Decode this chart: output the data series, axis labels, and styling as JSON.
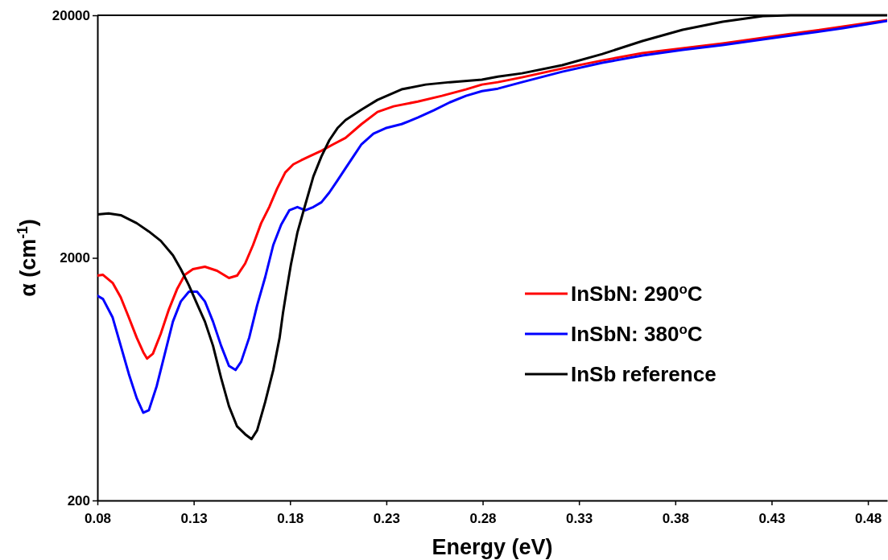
{
  "chart_data": {
    "type": "line",
    "xlabel": "Energy (eV)",
    "ylabel": "α (cm$^{-1}$)",
    "log": "y",
    "xlim": [
      0.08,
      0.49
    ],
    "xticks": [
      0.08,
      0.13,
      0.18,
      0.23,
      0.28,
      0.33,
      0.38,
      0.43,
      0.48
    ],
    "ylim": [
      200,
      20000
    ],
    "yticks": [
      200,
      2000,
      20000
    ],
    "grid": false,
    "legend": "right",
    "marker": "none",
    "line_style": "solid",
    "series": [
      {
        "name": "InSbN: 290$^{o}$C",
        "color": "#ff0000",
        "x": [
          0.08,
          0.0829,
          0.0879,
          0.0921,
          0.0963,
          0.1004,
          0.1038,
          0.1058,
          0.1088,
          0.1129,
          0.1171,
          0.1213,
          0.1254,
          0.1296,
          0.1358,
          0.1421,
          0.1483,
          0.1525,
          0.1567,
          0.1608,
          0.165,
          0.1692,
          0.1733,
          0.1775,
          0.1817,
          0.1858,
          0.19,
          0.1963,
          0.2025,
          0.2088,
          0.2171,
          0.2254,
          0.2338,
          0.2463,
          0.2588,
          0.2713,
          0.2796,
          0.2879,
          0.3004,
          0.3213,
          0.3421,
          0.3629,
          0.3838,
          0.4046,
          0.4254,
          0.4463,
          0.4671,
          0.49
        ],
        "values": [
          1690,
          1703,
          1578,
          1375,
          1136,
          938,
          817,
          769,
          805,
          974,
          1226,
          1484,
          1703,
          1797,
          1839,
          1770,
          1652,
          1690,
          1896,
          2260,
          2780,
          3240,
          3860,
          4500,
          4860,
          5050,
          5240,
          5530,
          5880,
          6250,
          7120,
          7990,
          8430,
          8820,
          9310,
          9900,
          10360,
          10600,
          11100,
          12070,
          13030,
          13960,
          14620,
          15300,
          16140,
          17030,
          17970,
          19100
        ]
      },
      {
        "name": "InSbN: 380$^{o}$C",
        "color": "#0000ff",
        "x": [
          0.08,
          0.0829,
          0.0879,
          0.0921,
          0.0963,
          0.1004,
          0.1038,
          0.1067,
          0.1108,
          0.115,
          0.1192,
          0.1233,
          0.1275,
          0.1317,
          0.1358,
          0.14,
          0.1442,
          0.1483,
          0.1517,
          0.1546,
          0.1588,
          0.1629,
          0.1671,
          0.1713,
          0.1754,
          0.1796,
          0.1838,
          0.1879,
          0.1921,
          0.1963,
          0.2004,
          0.2046,
          0.2088,
          0.2129,
          0.2171,
          0.2233,
          0.2296,
          0.2379,
          0.2463,
          0.2546,
          0.2629,
          0.2713,
          0.2796,
          0.2879,
          0.3004,
          0.3213,
          0.3421,
          0.3629,
          0.3838,
          0.4046,
          0.4254,
          0.4463,
          0.4671,
          0.49
        ],
        "values": [
          1396,
          1354,
          1136,
          869,
          665,
          528,
          460,
          471,
          593,
          805,
          1093,
          1323,
          1451,
          1451,
          1323,
          1093,
          869,
          717,
          690,
          746,
          938,
          1274,
          1665,
          2260,
          2740,
          3140,
          3240,
          3140,
          3240,
          3390,
          3720,
          4170,
          4680,
          5240,
          5880,
          6500,
          6850,
          7120,
          7570,
          8110,
          8750,
          9310,
          9740,
          9970,
          10600,
          11710,
          12740,
          13650,
          14390,
          15070,
          15900,
          16770,
          17700,
          18960
        ]
      },
      {
        "name": "InSb reference",
        "color": "#000000",
        "x": [
          0.08,
          0.0858,
          0.0921,
          0.1004,
          0.1067,
          0.1129,
          0.1192,
          0.1233,
          0.1275,
          0.1317,
          0.1358,
          0.14,
          0.1442,
          0.1483,
          0.1525,
          0.1567,
          0.16,
          0.1629,
          0.1671,
          0.1713,
          0.1746,
          0.1763,
          0.1783,
          0.1804,
          0.1838,
          0.1879,
          0.1921,
          0.1963,
          0.2004,
          0.2046,
          0.2088,
          0.2171,
          0.2254,
          0.2379,
          0.2504,
          0.2629,
          0.2796,
          0.2879,
          0.3004,
          0.3213,
          0.3421,
          0.3629,
          0.3838,
          0.4046,
          0.4254,
          0.44,
          0.49
        ],
        "values": [
          3020,
          3050,
          3000,
          2780,
          2570,
          2350,
          2050,
          1797,
          1542,
          1293,
          1093,
          869,
          640,
          489,
          404,
          375,
          358,
          389,
          509,
          690,
          938,
          1180,
          1484,
          1867,
          2540,
          3310,
          4330,
          5240,
          6110,
          6850,
          7400,
          8170,
          8960,
          9900,
          10360,
          10600,
          10850,
          11180,
          11530,
          12450,
          13850,
          15660,
          17430,
          18810,
          19850,
          20000,
          20000
        ]
      }
    ]
  }
}
